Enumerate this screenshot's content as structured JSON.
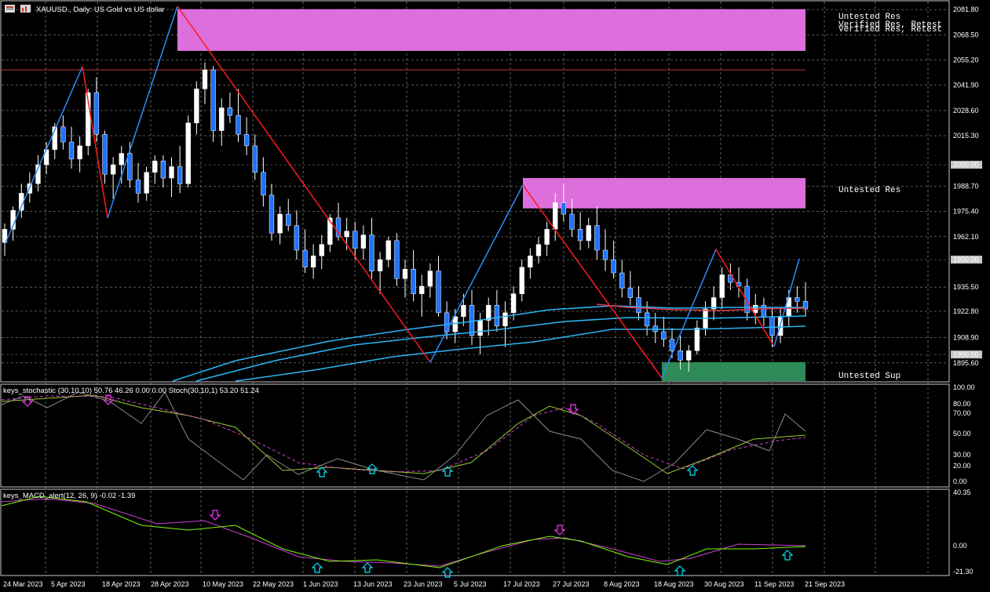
{
  "header": {
    "title": "XAUUSD., Daily: US Gold vs US dollar",
    "toolbar_icons": [
      "grid-menu-icon",
      "chart-bars-icon"
    ]
  },
  "price_axis": {
    "ticks": [
      "2081.80",
      "2068.50",
      "2055.20",
      "2041.90",
      "2028.60",
      "2015.30",
      "2000.00",
      "1988.70",
      "1975.40",
      "1962.10",
      "1950.00",
      "1935.50",
      "1922.80",
      "1908.90",
      "1900.00",
      "1895.60"
    ],
    "highlighted": [
      "2050.00",
      "2000.00",
      "1950.00",
      "1900.00"
    ]
  },
  "zones": {
    "res_top_label_1": "Untested Res",
    "res_top_label_2": "Verified Res, Retest",
    "res_top_label_3": "Verified Res, Retest",
    "res_mid_label": "Untested Res",
    "sup_label": "Untested Sup"
  },
  "stoch_panel": {
    "title": "keys_stochastic (30,10,10) 50.76 46.26 0.00 0.00 Stoch(30,10,1) 53.20 51.24",
    "ticks": [
      "100.00",
      "80.00",
      "70.00",
      "50.00",
      "30.00",
      "20.00",
      "0.00"
    ]
  },
  "macd_panel": {
    "title": "keys_MACD_alert(12, 26, 9) -0.02 -1.39",
    "ticks": [
      "40.35",
      "0.00",
      "-21.30"
    ]
  },
  "time_axis": {
    "labels": [
      "24 Mar 2023",
      "5 Apr 2023",
      "18 Apr 2023",
      "28 Apr 2023",
      "10 May 2023",
      "22 May 2023",
      "1 Jun 2023",
      "13 Jun 2023",
      "23 Jun 2023",
      "5 Jul 2023",
      "17 Jul 2023",
      "27 Jul 2023",
      "8 Aug 2023",
      "18 Aug 2023",
      "30 Aug 2023",
      "11 Sep 2023",
      "21 Sep 2023"
    ]
  },
  "colors": {
    "bull": "#ffffff",
    "bear": "#1e73ff",
    "zigzag_up": "#2b8cff",
    "zigzag_down": "#ff1a1a",
    "res_zone": "#dd6fdd",
    "sup_zone": "#2e8b57",
    "ma": "#29b6f6",
    "ma_red": "#e53950",
    "grid": "#8a8a8a",
    "arrow_up": "#00e5ff",
    "arrow_down": "#ff33ff"
  },
  "chart_data": {
    "type": "candlestick",
    "symbol": "XAUUSD.",
    "timeframe": "Daily",
    "ylim": [
      1888,
      2086
    ],
    "candles": [
      [
        1959,
        1969,
        1952,
        1966
      ],
      [
        1966,
        1978,
        1960,
        1976
      ],
      [
        1976,
        1990,
        1972,
        1985
      ],
      [
        1985,
        1996,
        1980,
        1990
      ],
      [
        1990,
        2005,
        1986,
        2000
      ],
      [
        2000,
        2012,
        1995,
        2008
      ],
      [
        2008,
        2022,
        2003,
        2020
      ],
      [
        2020,
        2026,
        2008,
        2012
      ],
      [
        2012,
        2020,
        1998,
        2003
      ],
      [
        2003,
        2015,
        1996,
        2010
      ],
      [
        2010,
        2040,
        2005,
        2038
      ],
      [
        2038,
        2046,
        2012,
        2016
      ],
      [
        2016,
        2018,
        1990,
        1995
      ],
      [
        1995,
        2004,
        1982,
        2000
      ],
      [
        2000,
        2010,
        1990,
        2006
      ],
      [
        2006,
        2012,
        1988,
        1992
      ],
      [
        1992,
        2001,
        1980,
        1985
      ],
      [
        1985,
        1999,
        1981,
        1996
      ],
      [
        1996,
        2005,
        1990,
        2002
      ],
      [
        2002,
        2005,
        1988,
        1993
      ],
      [
        1993,
        2004,
        1983,
        1999
      ],
      [
        1999,
        2010,
        1985,
        1990
      ],
      [
        1990,
        2026,
        1988,
        2022
      ],
      [
        2022,
        2044,
        2016,
        2040
      ],
      [
        2040,
        2054,
        2032,
        2050
      ],
      [
        2050,
        2052,
        2012,
        2018
      ],
      [
        2018,
        2035,
        2010,
        2030
      ],
      [
        2030,
        2038,
        2022,
        2026
      ],
      [
        2026,
        2040,
        2012,
        2016
      ],
      [
        2016,
        2025,
        2005,
        2010
      ],
      [
        2010,
        2016,
        1992,
        1996
      ],
      [
        1996,
        2004,
        1978,
        1984
      ],
      [
        1984,
        1990,
        1960,
        1964
      ],
      [
        1964,
        1978,
        1958,
        1974
      ],
      [
        1974,
        1982,
        1965,
        1968
      ],
      [
        1968,
        1976,
        1950,
        1955
      ],
      [
        1955,
        1966,
        1943,
        1946
      ],
      [
        1946,
        1958,
        1940,
        1952
      ],
      [
        1952,
        1963,
        1945,
        1958
      ],
      [
        1958,
        1974,
        1954,
        1972
      ],
      [
        1972,
        1980,
        1960,
        1962
      ],
      [
        1962,
        1972,
        1955,
        1965
      ],
      [
        1965,
        1970,
        1950,
        1956
      ],
      [
        1956,
        1968,
        1950,
        1963
      ],
      [
        1963,
        1972,
        1940,
        1944
      ],
      [
        1944,
        1954,
        1932,
        1950
      ],
      [
        1950,
        1962,
        1946,
        1960
      ],
      [
        1960,
        1964,
        1936,
        1940
      ],
      [
        1940,
        1950,
        1930,
        1945
      ],
      [
        1945,
        1955,
        1928,
        1932
      ],
      [
        1932,
        1942,
        1920,
        1936
      ],
      [
        1936,
        1948,
        1930,
        1944
      ],
      [
        1944,
        1952,
        1920,
        1922
      ],
      [
        1922,
        1928,
        1908,
        1912
      ],
      [
        1912,
        1924,
        1906,
        1920
      ],
      [
        1920,
        1932,
        1915,
        1926
      ],
      [
        1926,
        1934,
        1905,
        1910
      ],
      [
        1910,
        1922,
        1900,
        1918
      ],
      [
        1918,
        1930,
        1910,
        1926
      ],
      [
        1926,
        1934,
        1912,
        1915
      ],
      [
        1915,
        1928,
        1904,
        1922
      ],
      [
        1922,
        1936,
        1918,
        1932
      ],
      [
        1932,
        1950,
        1928,
        1946
      ],
      [
        1946,
        1956,
        1940,
        1952
      ],
      [
        1952,
        1962,
        1948,
        1958
      ],
      [
        1958,
        1970,
        1952,
        1966
      ],
      [
        1966,
        1985,
        1960,
        1980
      ],
      [
        1980,
        1990,
        1970,
        1974
      ],
      [
        1974,
        1982,
        1962,
        1966
      ],
      [
        1966,
        1975,
        1955,
        1960
      ],
      [
        1960,
        1972,
        1956,
        1968
      ],
      [
        1968,
        1978,
        1950,
        1955
      ],
      [
        1955,
        1966,
        1944,
        1950
      ],
      [
        1950,
        1960,
        1940,
        1943
      ],
      [
        1943,
        1950,
        1930,
        1935
      ],
      [
        1935,
        1944,
        1926,
        1930
      ],
      [
        1930,
        1936,
        1918,
        1922
      ],
      [
        1922,
        1928,
        1910,
        1915
      ],
      [
        1915,
        1922,
        1906,
        1912
      ],
      [
        1912,
        1920,
        1904,
        1908
      ],
      [
        1908,
        1914,
        1898,
        1902
      ],
      [
        1902,
        1910,
        1892,
        1897
      ],
      [
        1897,
        1905,
        1891,
        1902
      ],
      [
        1902,
        1918,
        1900,
        1914
      ],
      [
        1914,
        1928,
        1910,
        1924
      ],
      [
        1924,
        1936,
        1918,
        1930
      ],
      [
        1930,
        1946,
        1924,
        1942
      ],
      [
        1942,
        1948,
        1934,
        1938
      ],
      [
        1938,
        1946,
        1930,
        1936
      ],
      [
        1936,
        1940,
        1918,
        1922
      ],
      [
        1922,
        1932,
        1916,
        1926
      ],
      [
        1926,
        1930,
        1915,
        1920
      ],
      [
        1920,
        1925,
        1904,
        1910
      ],
      [
        1910,
        1924,
        1906,
        1920
      ],
      [
        1920,
        1934,
        1915,
        1930
      ],
      [
        1930,
        1936,
        1922,
        1928
      ],
      [
        1928,
        1938,
        1920,
        1924
      ]
    ],
    "annotations": {
      "horizontal_levels": [
        2050.0,
        2000.0,
        1950.0,
        1900.0
      ],
      "zones": [
        {
          "label": "Untested Res",
          "from": 2060,
          "to": 2082,
          "kind": "resistance"
        },
        {
          "label": "Untested Res",
          "from": 1977,
          "to": 1993,
          "kind": "resistance"
        },
        {
          "label": "Untested Sup",
          "from": 1886,
          "to": 1896,
          "kind": "support"
        }
      ]
    },
    "stochastic": {
      "name": "keys_stochastic (30,10,10)",
      "values": [
        50.76,
        46.26,
        0.0,
        0.0
      ],
      "stoch": [
        53.2,
        51.24
      ],
      "ylim": [
        0,
        100
      ]
    },
    "macd": {
      "name": "keys_MACD_alert(12, 26, 9)",
      "values": [
        -0.02,
        -1.39
      ],
      "ylim": [
        -21.3,
        40.35
      ]
    },
    "x": [
      "24 Mar 2023",
      "5 Apr 2023",
      "18 Apr 2023",
      "28 Apr 2023",
      "10 May 2023",
      "22 May 2023",
      "1 Jun 2023",
      "13 Jun 2023",
      "23 Jun 2023",
      "5 Jul 2023",
      "17 Jul 2023",
      "27 Jul 2023",
      "8 Aug 2023",
      "18 Aug 2023",
      "30 Aug 2023",
      "11 Sep 2023",
      "21 Sep 2023"
    ]
  }
}
